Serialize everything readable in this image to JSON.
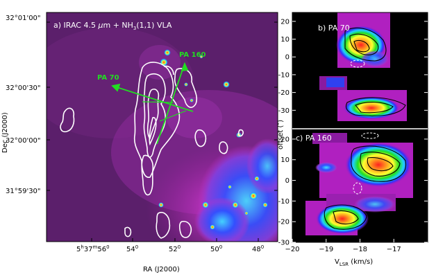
{
  "chart_data": [
    {
      "type": "heatmap",
      "panel": "a",
      "title": "a) IRAC 4.5 μm + NH₃(1,1) VLA",
      "title_parts": {
        "prefix": "a) IRAC 4.5 ",
        "mu": "μ",
        "m": "m + NH",
        "sub": "3",
        "suffix": "(1,1) VLA"
      },
      "xlabel": "RA (J2000)",
      "ylabel": "Dec (J2000)",
      "x_tick_labels": [
        {
          "h": "5",
          "hu": "h",
          "m": "37",
          "mu": "m",
          "s": "56",
          "f": "0"
        },
        {
          "s": "54",
          "f": "0"
        },
        {
          "s": "52",
          "f": "0"
        },
        {
          "s": "50",
          "f": "0"
        },
        {
          "s": "48",
          "f": "0"
        }
      ],
      "y_tick_labels": [
        "32°01'00\"",
        "32°00'30\"",
        "32°00'00\"",
        "31°59'30\""
      ],
      "cuts": [
        {
          "name": "PA 70",
          "color": "#22dd22"
        },
        {
          "name": "PA 160",
          "color": "#22dd22"
        }
      ],
      "colormap": "black-purple-magenta-blue-cyan-yellow-red",
      "contour_color": "#ffffff"
    },
    {
      "type": "heatmap",
      "panel": "b",
      "title": "b) PA 70",
      "xlabel": "",
      "ylabel": "offset (″)",
      "xlim": [
        -20,
        -16
      ],
      "ylim": [
        -40,
        25
      ],
      "y_ticks": [
        20,
        10,
        0,
        -10,
        -20,
        -30
      ],
      "emission_peaks": [
        {
          "velocity": -17.9,
          "offset": 10
        },
        {
          "velocity": -17.9,
          "offset": -28
        }
      ]
    },
    {
      "type": "heatmap",
      "panel": "c",
      "title": "c) PA 160",
      "xlabel": "V_LSR (km/s)",
      "xlabel_parts": {
        "v": "V",
        "sub": "LSR",
        "rest": " (km/s)"
      },
      "ylabel": "",
      "xlim": [
        -20,
        -16
      ],
      "ylim": [
        -30,
        25
      ],
      "x_ticks": [
        -20,
        -19,
        -18,
        -17
      ],
      "y_ticks": [
        20,
        10,
        0,
        -10,
        -20,
        -30
      ],
      "emission_peaks": [
        {
          "velocity": -17.6,
          "offset": 11
        },
        {
          "velocity": -18.3,
          "offset": -18
        }
      ]
    }
  ],
  "colors": {
    "background_dark": "#5a1a6a",
    "magenta": "#c020c0",
    "contour": "#ffffff",
    "cut_lines": "#22dd22"
  }
}
